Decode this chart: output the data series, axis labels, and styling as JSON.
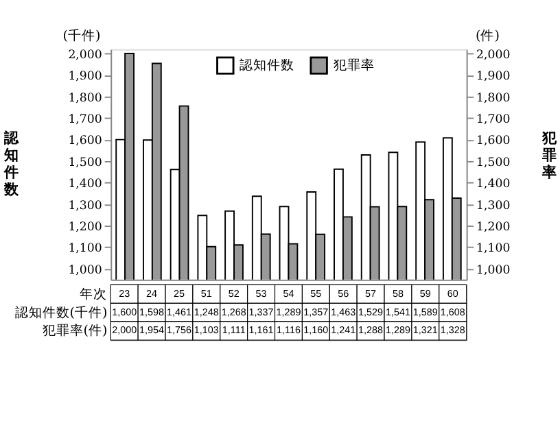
{
  "chart_data": {
    "type": "bar",
    "categories": [
      "23",
      "24",
      "25",
      "51",
      "52",
      "53",
      "54",
      "55",
      "56",
      "57",
      "58",
      "59",
      "60"
    ],
    "series": [
      {
        "name": "認知件数",
        "color": "#ffffff",
        "values": [
          1600,
          1598,
          1461,
          1248,
          1268,
          1337,
          1289,
          1357,
          1463,
          1529,
          1541,
          1589,
          1608
        ],
        "value_labels": [
          "1,600",
          "1,598",
          "1,461",
          "1,248",
          "1,268",
          "1,337",
          "1,289",
          "1,357",
          "1,463",
          "1,529",
          "1,541",
          "1,589",
          "1,608"
        ]
      },
      {
        "name": "犯罪率",
        "color": "#999999",
        "axis": "y2",
        "values": [
          2000,
          1954,
          1756,
          1103,
          1111,
          1161,
          1116,
          1160,
          1241,
          1288,
          1289,
          1321,
          1328
        ],
        "value_labels": [
          "2,000",
          "1,954",
          "1,756",
          "1,103",
          "1,111",
          "1,161",
          "1,116",
          "1,160",
          "1,241",
          "1,288",
          "1,289",
          "1,321",
          "1,328"
        ]
      }
    ],
    "ylabel": "認知件数",
    "y2label": "犯罪率",
    "ylim": [
      950,
      2020
    ],
    "yticks": [
      {
        "value": 1000,
        "label": "1,000"
      },
      {
        "value": 1100,
        "label": "1,100"
      },
      {
        "value": 1200,
        "label": "1,200"
      },
      {
        "value": 1300,
        "label": "1,300"
      },
      {
        "value": 1400,
        "label": "1,400"
      },
      {
        "value": 1500,
        "label": "1,500"
      },
      {
        "value": 1600,
        "label": "1,600"
      },
      {
        "value": 1700,
        "label": "1,700"
      },
      {
        "value": 1800,
        "label": "1,800"
      },
      {
        "value": 1900,
        "label": "1,900"
      },
      {
        "value": 2000,
        "label": "2,000"
      }
    ],
    "y2lim": [
      950,
      2020
    ],
    "y2ticks": [
      {
        "value": 1000,
        "label": "1,000"
      },
      {
        "value": 1100,
        "label": "1,100"
      },
      {
        "value": 1200,
        "label": "1,200"
      },
      {
        "value": 1300,
        "label": "1,300"
      },
      {
        "value": 1400,
        "label": "1,400"
      },
      {
        "value": 1500,
        "label": "1,500"
      },
      {
        "value": 1600,
        "label": "1,600"
      },
      {
        "value": 1700,
        "label": "1,700"
      },
      {
        "value": 1800,
        "label": "1,800"
      },
      {
        "value": 1900,
        "label": "1,900"
      },
      {
        "value": 2000,
        "label": "2,000"
      }
    ],
    "annotations": [
      "(千件)",
      "(件)",
      "年次",
      "認知件数(千件)",
      "犯罪率(件)"
    ],
    "legend": "top",
    "grid": false
  }
}
